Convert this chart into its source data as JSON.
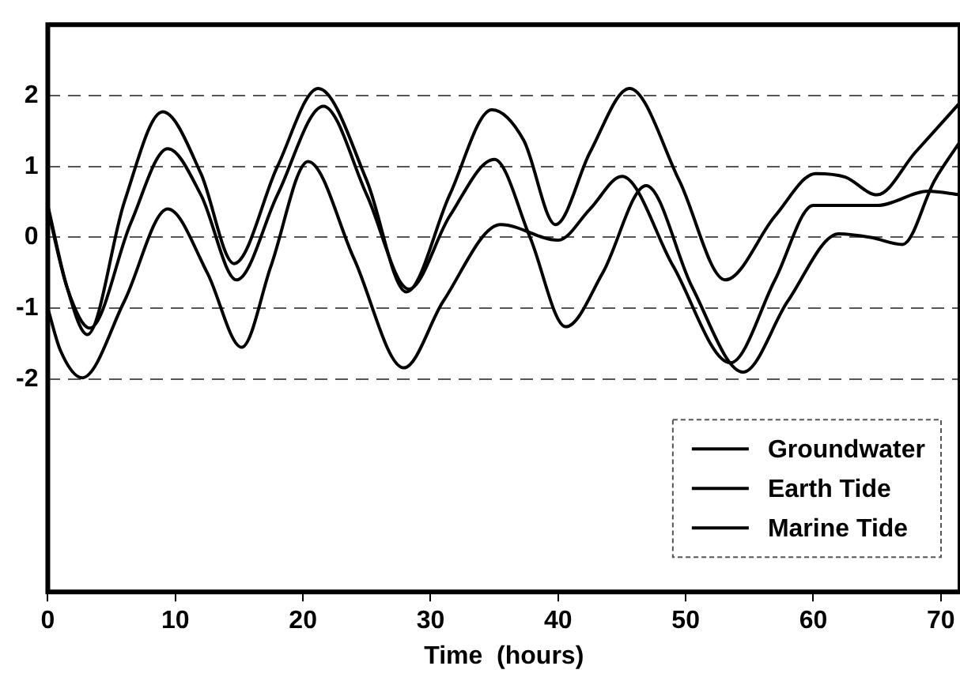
{
  "chart_data": {
    "type": "line",
    "xlabel": "Time  (hours)",
    "xlim": [
      0,
      71.5
    ],
    "ylim": [
      -5,
      3
    ],
    "xticks": [
      0,
      10,
      20,
      30,
      40,
      50,
      60,
      70
    ],
    "yticks": [
      -2,
      -1,
      0,
      1,
      2
    ],
    "grid": "y",
    "legend": "bottom right",
    "marker": "none",
    "line_style": "solid",
    "series": [
      {
        "name": "Groundwater",
        "color": "#000000",
        "x": [
          0,
          1.5,
          3.1,
          6,
          9,
          12,
          14.6,
          18,
          21.2,
          25,
          28.1,
          31.5,
          34.8,
          37.3,
          39.8,
          42.5,
          45.6,
          49.5,
          53.1,
          57,
          60.2,
          62.5,
          65,
          68,
          71.5
        ],
        "values": [
          0.45,
          -0.7,
          -1.37,
          0.5,
          1.77,
          0.9,
          -0.37,
          1.0,
          2.1,
          0.8,
          -0.77,
          0.6,
          1.8,
          1.37,
          0.18,
          1.2,
          2.1,
          0.8,
          -0.6,
          0.3,
          0.9,
          0.85,
          0.6,
          1.2,
          1.9
        ]
      },
      {
        "name": "Earth Tide",
        "color": "#000000",
        "x": [
          0,
          1.5,
          3.3,
          6.5,
          9.4,
          12,
          14.8,
          18,
          21.6,
          25,
          28.3,
          31.5,
          35,
          37.8,
          40.6,
          43.5,
          46.9,
          50.5,
          54.5,
          58,
          62,
          64.5,
          67,
          69.5,
          71.5
        ],
        "values": [
          0.4,
          -0.7,
          -1.28,
          0.2,
          1.25,
          0.6,
          -0.6,
          0.6,
          1.85,
          0.6,
          -0.73,
          0.3,
          1.1,
          0.0,
          -1.26,
          -0.5,
          0.73,
          -0.7,
          -1.9,
          -0.9,
          0.05,
          0.0,
          -0.1,
          0.8,
          1.35
        ]
      },
      {
        "name": "Marine Tide",
        "color": "#000000",
        "x": [
          0,
          1,
          2.7,
          6,
          9.4,
          12.5,
          15.2,
          17.5,
          20.4,
          24,
          27.9,
          31,
          35.5,
          40,
          42.5,
          45,
          49,
          53.5,
          57,
          60,
          65,
          69,
          71.5
        ],
        "values": [
          -1.0,
          -1.6,
          -1.98,
          -0.9,
          0.4,
          -0.5,
          -1.55,
          -0.4,
          1.07,
          -0.3,
          -1.84,
          -0.9,
          0.18,
          -0.04,
          0.4,
          0.86,
          -0.4,
          -1.77,
          -0.6,
          0.45,
          0.45,
          0.65,
          0.6
        ]
      }
    ]
  }
}
